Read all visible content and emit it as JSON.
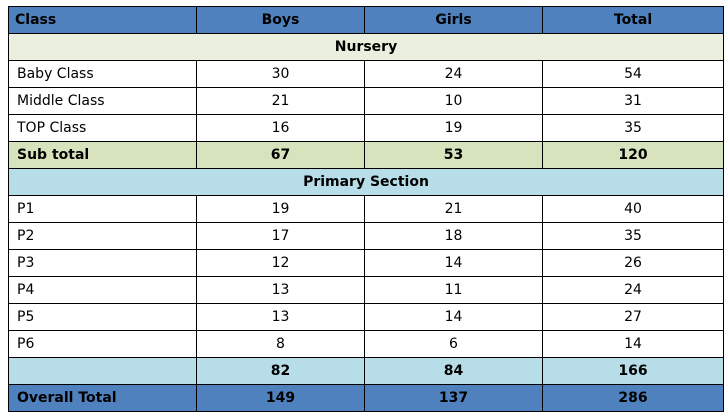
{
  "headers": [
    "Class",
    "Boys",
    "Girls",
    "Total"
  ],
  "nursery": {
    "title": "Nursery",
    "rows": [
      {
        "label": "Baby Class",
        "boys": "30",
        "girls": "24",
        "total": "54"
      },
      {
        "label": "Middle Class",
        "boys": "21",
        "girls": "10",
        "total": "31"
      },
      {
        "label": "TOP Class",
        "boys": "16",
        "girls": "19",
        "total": "35"
      }
    ],
    "subtotal": {
      "label": "Sub total",
      "boys": "67",
      "girls": "53",
      "total": "120"
    }
  },
  "primary": {
    "title": "Primary Section",
    "rows": [
      {
        "label": "P1",
        "boys": "19",
        "girls": "21",
        "total": "40"
      },
      {
        "label": "P2",
        "boys": "17",
        "girls": "18",
        "total": "35"
      },
      {
        "label": "P3",
        "boys": "12",
        "girls": "14",
        "total": "26"
      },
      {
        "label": "P4",
        "boys": "13",
        "girls": "11",
        "total": "24"
      },
      {
        "label": "P5",
        "boys": "13",
        "girls": "14",
        "total": "27"
      },
      {
        "label": "P6",
        "boys": "8",
        "girls": "6",
        "total": "14"
      }
    ],
    "subtotal": {
      "label": "",
      "boys": "82",
      "girls": "84",
      "total": "166"
    }
  },
  "overall": {
    "label": "Overall Total",
    "boys": "149",
    "girls": "137",
    "total": "286"
  }
}
